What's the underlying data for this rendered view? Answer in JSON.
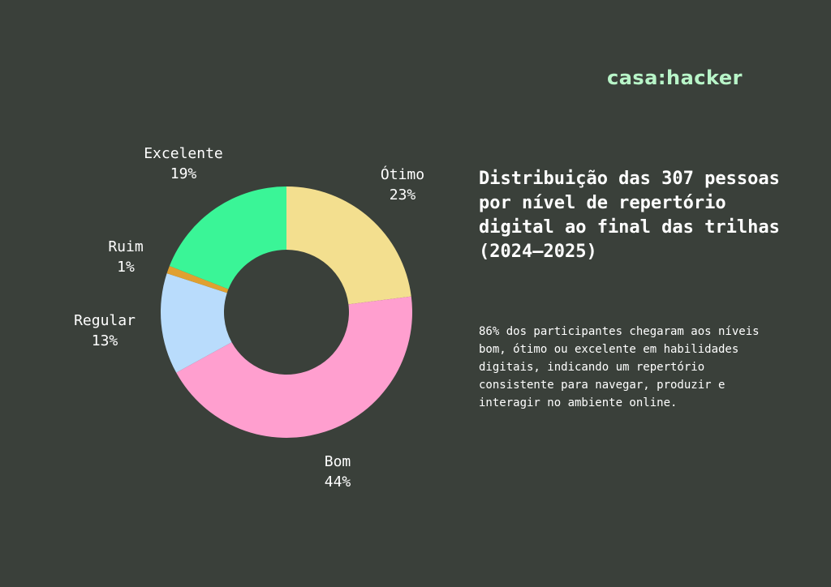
{
  "logo": "casa:hacker",
  "title": "Distribuição das 307 pessoas por nível de repertório digital ao final das trilhas (2024–2025)",
  "description": "86% dos participantes chegaram aos níveis bom, ótimo ou excelente em habilidades digitais, indicando um repertório consistente para navegar, produzir e interagir no ambiente online.",
  "chart_data": {
    "type": "pie",
    "donut": true,
    "order": "clockwise from top",
    "categories": [
      "Ótimo",
      "Bom",
      "Regular",
      "Ruim",
      "Excelente"
    ],
    "values": [
      23,
      44,
      13,
      1,
      19
    ],
    "value_labels": [
      "23%",
      "44%",
      "13%",
      "1%",
      "19%"
    ],
    "colors": [
      "#f3df8f",
      "#ff9fcf",
      "#b9dcfc",
      "#e0a030",
      "#3af597"
    ],
    "title": "",
    "legend": "none (labels beside slices)"
  }
}
